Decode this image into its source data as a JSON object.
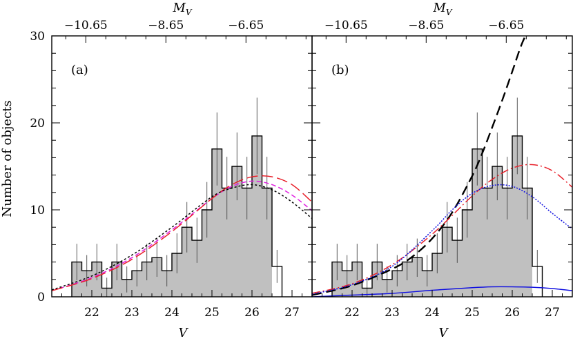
{
  "chart_data": {
    "type": "bar",
    "ylabel": "Number of objects",
    "xlabel": "V",
    "x2label_main": "M",
    "x2label_sub": "V",
    "xlim": [
      21.0,
      27.5
    ],
    "ylim": [
      0,
      30
    ],
    "xticks": [
      "22",
      "23",
      "24",
      "25",
      "26",
      "27"
    ],
    "yticks": [
      "0",
      "10",
      "20",
      "30"
    ],
    "top_ticks": [
      "−10.65",
      "−8.65",
      "−6.65"
    ],
    "top_tick_positions_v": [
      21.85,
      23.85,
      25.85
    ],
    "colors": {
      "histogram_fill": "#c0c0c0",
      "black": "#000000",
      "red": "#e8202a",
      "magenta": "#e020e0",
      "blue": "#1010e0"
    },
    "panels": [
      {
        "label": "(a)",
        "bins": {
          "left_edges": [
            21.5,
            21.75,
            22.0,
            22.25,
            22.5,
            22.75,
            23.0,
            23.25,
            23.5,
            23.75,
            24.0,
            24.25,
            24.5,
            24.75,
            25.0,
            25.25,
            25.5,
            25.75,
            26.0,
            26.25,
            26.5
          ],
          "width": 0.25,
          "counts": [
            4,
            3,
            4,
            1,
            4,
            2,
            3,
            4,
            4.5,
            3,
            5,
            8,
            6.5,
            10,
            17,
            12.5,
            15,
            12.5,
            18.5,
            12.5,
            3.5
          ],
          "filled_to": 26.5,
          "errors": [
            2.1,
            1.8,
            2.1,
            1.2,
            2.1,
            1.5,
            1.8,
            2.1,
            2.2,
            1.8,
            2.3,
            2.9,
            2.6,
            3.2,
            4.2,
            3.6,
            3.9,
            3.6,
            4.4,
            3.6,
            1.9
          ]
        },
        "curves": [
          {
            "name": "magenta-dashed",
            "color": "magenta",
            "dash": "7,4",
            "x": [
              21.0,
              22.0,
              23.0,
              24.0,
              25.0,
              25.5,
              26.0,
              26.5,
              27.0,
              27.5
            ],
            "y": [
              0.7,
              2.2,
              4.5,
              7.7,
              11.3,
              12.7,
              13.3,
              12.9,
              11.7,
              9.9
            ]
          },
          {
            "name": "red-long-dashed",
            "color": "red",
            "dash": "16,6",
            "x": [
              21.0,
              22.0,
              23.0,
              24.0,
              25.0,
              25.5,
              26.0,
              26.5,
              27.0,
              27.5
            ],
            "y": [
              0.7,
              2.1,
              4.3,
              7.5,
              11.3,
              12.9,
              13.8,
              13.8,
              12.9,
              10.9
            ]
          },
          {
            "name": "black-dotted",
            "color": "black",
            "dash": "3,3",
            "x": [
              21.0,
              22.0,
              23.0,
              24.0,
              25.0,
              25.5,
              26.0,
              26.5,
              27.0,
              27.5
            ],
            "y": [
              0.8,
              2.4,
              4.8,
              8.0,
              11.5,
              12.5,
              12.9,
              12.3,
              10.9,
              9.0
            ]
          }
        ]
      },
      {
        "label": "(b)",
        "bins": {
          "left_edges": [
            21.5,
            21.75,
            22.0,
            22.25,
            22.5,
            22.75,
            23.0,
            23.25,
            23.5,
            23.75,
            24.0,
            24.25,
            24.5,
            24.75,
            25.0,
            25.25,
            25.5,
            25.75,
            26.0,
            26.25,
            26.5
          ],
          "width": 0.25,
          "counts": [
            4,
            3,
            4,
            1,
            4,
            2,
            3,
            4,
            4.5,
            3,
            5,
            8,
            6.5,
            10,
            17,
            12.5,
            15,
            12.5,
            18.5,
            12.5,
            3.5
          ],
          "filled_to": 26.5,
          "errors": [
            2.1,
            1.8,
            2.1,
            1.2,
            2.1,
            1.5,
            1.8,
            2.1,
            2.2,
            1.8,
            2.3,
            2.9,
            2.6,
            3.2,
            4.2,
            3.6,
            3.9,
            3.6,
            4.4,
            3.6,
            1.9
          ]
        },
        "curves": [
          {
            "name": "black-dashed",
            "color": "black",
            "dash": "14,7",
            "width": 2.4,
            "x": [
              21.0,
              22.0,
              23.0,
              23.5,
              24.0,
              24.5,
              25.0,
              25.25,
              25.5,
              25.75,
              26.0,
              26.25,
              26.5
            ],
            "y": [
              0.2,
              1.3,
              3.2,
              4.6,
              6.7,
              9.7,
              13.9,
              16.5,
              19.5,
              22.6,
              25.9,
              29.2,
              31.5
            ]
          },
          {
            "name": "red-dash-dot",
            "color": "red",
            "dash": "12,4,2,4",
            "x": [
              21.0,
              22.0,
              23.0,
              24.0,
              25.0,
              25.5,
              26.0,
              26.5,
              27.0,
              27.5
            ],
            "y": [
              0.4,
              1.5,
              3.7,
              7.2,
              11.6,
              13.5,
              14.8,
              15.2,
              14.5,
              12.6
            ]
          },
          {
            "name": "blue-dotted",
            "color": "blue",
            "dash": "2,2",
            "x": [
              21.0,
              22.0,
              23.0,
              24.0,
              24.5,
              25.0,
              25.5,
              26.0,
              26.5,
              27.0,
              27.5
            ],
            "y": [
              0.3,
              1.4,
              3.5,
              7.6,
              10.0,
              11.9,
              12.8,
              12.7,
              11.5,
              9.6,
              7.8
            ]
          },
          {
            "name": "blue-solid",
            "color": "blue",
            "dash": "",
            "x": [
              21.0,
              22.0,
              23.0,
              24.0,
              25.0,
              25.5,
              26.0,
              26.5,
              27.0,
              27.5
            ],
            "y": [
              0.0,
              0.2,
              0.4,
              0.75,
              1.05,
              1.15,
              1.15,
              1.1,
              0.95,
              0.7
            ]
          }
        ]
      }
    ]
  }
}
